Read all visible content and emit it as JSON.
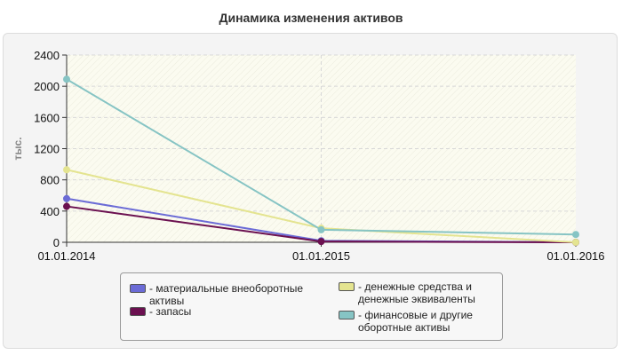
{
  "chart_data": {
    "type": "line",
    "title": "Динамика изменения активов",
    "ylabel": "тыс.",
    "x": [
      "01.01.2014",
      "01.01.2015",
      "01.01.2016"
    ],
    "ylim": [
      0,
      2400
    ],
    "yticks": [
      0,
      400,
      800,
      1200,
      1600,
      2000,
      2400
    ],
    "grid": true,
    "legend_position": "bottom",
    "series": [
      {
        "name": "- материальные внеоборотные\nактивы",
        "color": "#6b6bd6",
        "values": [
          560,
          20,
          0
        ]
      },
      {
        "name": "- запасы",
        "color": "#6b1050",
        "values": [
          460,
          10,
          0
        ]
      },
      {
        "name": "- денежные средства и\nденежные эквиваленты",
        "color": "#e4e490",
        "values": [
          930,
          180,
          0
        ]
      },
      {
        "name": "- финансовые и другие\nоборотные активы",
        "color": "#86c4c4",
        "values": [
          2090,
          160,
          100
        ]
      }
    ]
  }
}
